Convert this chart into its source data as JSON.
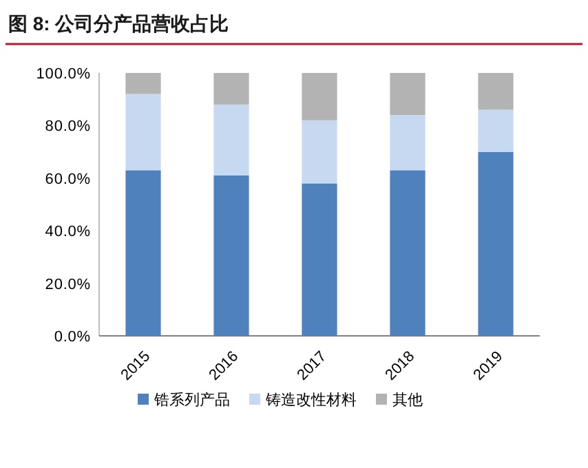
{
  "chart_data": {
    "type": "bar",
    "title": "图 8:  公司分产品营收占比",
    "stacked": true,
    "categories": [
      "2015",
      "2016",
      "2017",
      "2018",
      "2019"
    ],
    "series": [
      {
        "name": "锆系列产品",
        "color": "#4f81bd",
        "values": [
          63,
          61,
          58,
          63,
          70
        ]
      },
      {
        "name": "铸造改性材料",
        "color": "#c6d9f1",
        "values": [
          29,
          27,
          24,
          21,
          16
        ]
      },
      {
        "name": "其他",
        "color": "#b3b3b3",
        "values": [
          8,
          12,
          18,
          16,
          14
        ]
      }
    ],
    "ylim": [
      0,
      100
    ],
    "yticks": [
      {
        "value": 0,
        "label": "0.0%"
      },
      {
        "value": 20,
        "label": "20.0%"
      },
      {
        "value": 40,
        "label": "40.0%"
      },
      {
        "value": 60,
        "label": "60.0%"
      },
      {
        "value": 80,
        "label": "80.0%"
      },
      {
        "value": 100,
        "label": "100.0%"
      }
    ],
    "grid": false,
    "legend": "bottom"
  }
}
